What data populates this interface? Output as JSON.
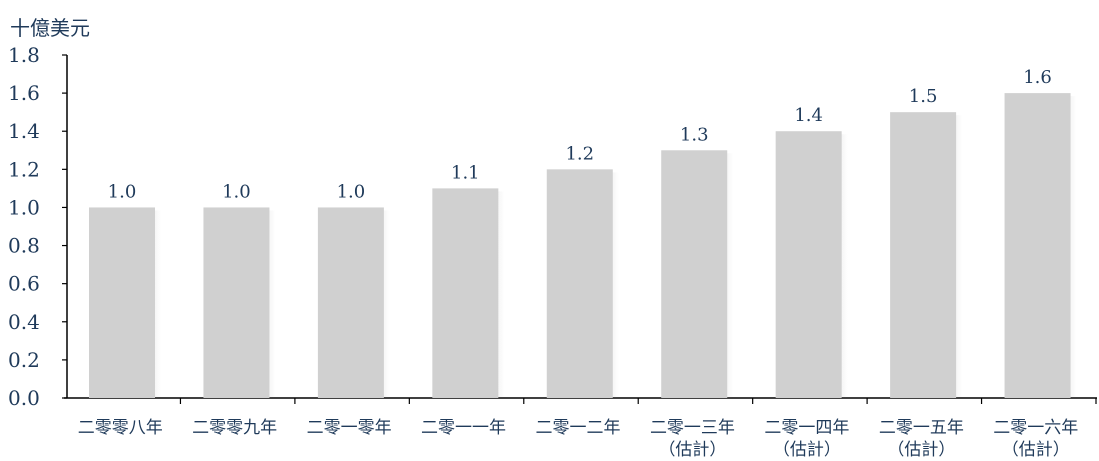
{
  "chart_data": {
    "type": "bar",
    "unit_label": "十億美元",
    "categories": [
      [
        "二零零八年"
      ],
      [
        "二零零九年"
      ],
      [
        "二零一零年"
      ],
      [
        "二零一一年"
      ],
      [
        "二零一二年"
      ],
      [
        "二零一三年",
        "（估計）"
      ],
      [
        "二零一四年",
        "（估計）"
      ],
      [
        "二零一五年",
        "（估計）"
      ],
      [
        "二零一六年",
        "（估計）"
      ]
    ],
    "values": [
      1.0,
      1.0,
      1.0,
      1.1,
      1.2,
      1.3,
      1.4,
      1.5,
      1.6
    ],
    "data_labels": [
      "1.0",
      "1.0",
      "1.0",
      "1.1",
      "1.2",
      "1.3",
      "1.4",
      "1.5",
      "1.6"
    ],
    "ylim": [
      0,
      1.8
    ],
    "yticks": [
      "0.0",
      "0.2",
      "0.4",
      "0.6",
      "0.8",
      "1.0",
      "1.2",
      "1.4",
      "1.6",
      "1.8"
    ],
    "grid": false,
    "colors": {
      "bar": "#d0d0d0",
      "bar_shadow": "#8a8a8a",
      "text": "#1f3a5a",
      "axis": "#000000"
    }
  }
}
